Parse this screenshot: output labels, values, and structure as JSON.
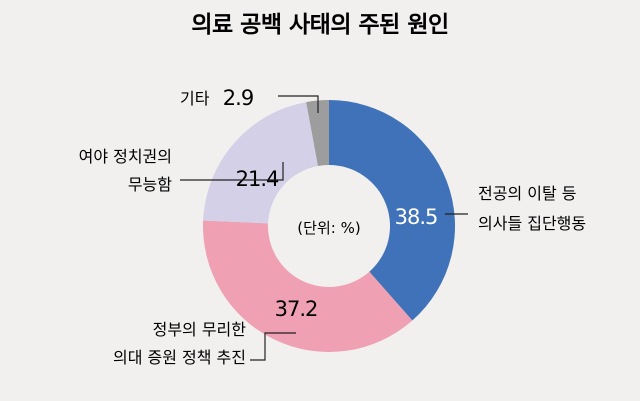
{
  "chart_data": {
    "type": "pie",
    "title": "의료 공백 사태의 주된 원인",
    "unit_note": "(단위: %)",
    "colors": {
      "background": "#f2f0ef",
      "blue": "#3f72b8",
      "pink": "#efa0b2",
      "lavender": "#d4d0e8",
      "gray": "#9d9d9d"
    },
    "slices": [
      {
        "label_lines": [
          "전공의 이탈 등",
          "의사들 집단행동"
        ],
        "value": 38.5,
        "value_text": "38.5",
        "color": "#3f72b8"
      },
      {
        "label_lines": [
          "정부의 무리한",
          "의대 증원 정책 추진"
        ],
        "value": 37.2,
        "value_text": "37.2",
        "color": "#efa0b2"
      },
      {
        "label_lines": [
          "여야 정치권의",
          "무능함"
        ],
        "value": 21.4,
        "value_text": "21.4",
        "color": "#d4d0e8"
      },
      {
        "label_lines": [
          "기타"
        ],
        "value": 2.9,
        "value_text": "2.9",
        "color": "#9d9d9d"
      }
    ]
  }
}
